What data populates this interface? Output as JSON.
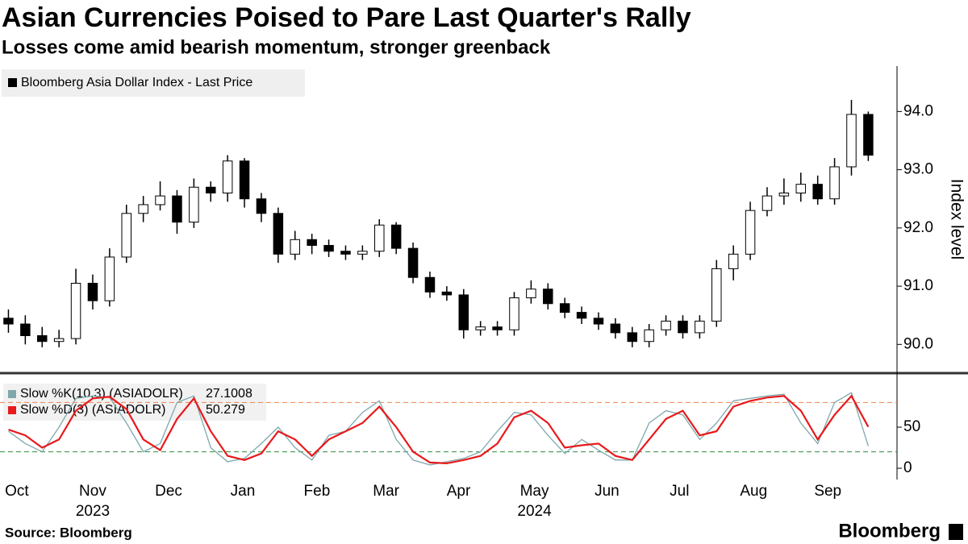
{
  "chart_data": [
    {
      "type": "candlestick",
      "title": "Asian Currencies Poised to Pare Last Quarter's Rally",
      "subtitle": "Losses come amid bearish momentum, stronger greenback",
      "name": "Bloomberg Asia Dollar Index - Last Price",
      "y_label": "Index level",
      "up_color": "#ffffff",
      "down_color": "#000000",
      "xlim": [
        -0.5,
        52.13
      ],
      "ylim": [
        89.52,
        94.78
      ],
      "yticks": [
        {
          "value": 90,
          "label": "90.0"
        },
        {
          "value": 91,
          "label": "91.0"
        },
        {
          "value": 92,
          "label": "92.0"
        },
        {
          "value": 93,
          "label": "93.0"
        },
        {
          "value": 94,
          "label": "94.0"
        }
      ],
      "open": [
        90.45,
        90.35,
        90.15,
        90.05,
        90.1,
        91.05,
        90.75,
        91.5,
        92.25,
        92.4,
        92.55,
        92.1,
        92.7,
        92.6,
        93.15,
        92.5,
        92.25,
        91.55,
        91.8,
        91.7,
        91.6,
        91.55,
        91.6,
        92.05,
        91.65,
        91.15,
        90.9,
        90.85,
        90.25,
        90.3,
        90.25,
        90.8,
        90.95,
        90.7,
        90.55,
        90.45,
        90.35,
        90.2,
        90.05,
        90.25,
        90.4,
        90.2,
        90.4,
        91.3,
        91.55,
        92.3,
        92.55,
        92.6,
        92.75,
        92.5,
        93.05,
        93.95
      ],
      "high": [
        90.6,
        90.5,
        90.3,
        90.25,
        91.3,
        91.2,
        91.65,
        92.4,
        92.55,
        92.8,
        92.65,
        92.85,
        92.8,
        93.25,
        93.2,
        92.6,
        92.35,
        91.95,
        91.9,
        91.8,
        91.7,
        91.7,
        92.15,
        92.1,
        91.75,
        91.25,
        91.0,
        90.95,
        90.4,
        90.4,
        90.9,
        91.1,
        91.05,
        90.8,
        90.65,
        90.55,
        90.45,
        90.3,
        90.35,
        90.5,
        90.5,
        90.5,
        91.45,
        91.7,
        92.45,
        92.7,
        92.85,
        92.95,
        92.9,
        93.2,
        94.2,
        94.0
      ],
      "low": [
        90.2,
        90.0,
        89.95,
        89.95,
        90.0,
        90.6,
        90.65,
        91.4,
        92.1,
        92.3,
        91.9,
        92.0,
        92.45,
        92.45,
        92.35,
        92.1,
        91.4,
        91.45,
        91.55,
        91.5,
        91.45,
        91.45,
        91.5,
        91.55,
        91.05,
        90.8,
        90.75,
        90.1,
        90.15,
        90.15,
        90.15,
        90.7,
        90.6,
        90.45,
        90.35,
        90.25,
        90.1,
        89.95,
        89.95,
        90.15,
        90.1,
        90.1,
        90.3,
        91.1,
        91.45,
        92.2,
        92.4,
        92.45,
        92.4,
        92.4,
        92.9,
        93.15
      ],
      "close": [
        90.35,
        90.15,
        90.05,
        90.1,
        91.05,
        90.75,
        91.5,
        92.25,
        92.4,
        92.55,
        92.1,
        92.7,
        92.6,
        93.15,
        92.5,
        92.25,
        91.55,
        91.8,
        91.7,
        91.6,
        91.55,
        91.6,
        92.05,
        91.65,
        91.15,
        90.9,
        90.85,
        90.25,
        90.3,
        90.25,
        90.8,
        90.95,
        90.7,
        90.55,
        90.45,
        90.35,
        90.2,
        90.05,
        90.25,
        90.4,
        90.2,
        90.4,
        91.3,
        91.55,
        92.3,
        92.55,
        92.6,
        92.75,
        92.5,
        93.05,
        93.95,
        93.25
      ]
    },
    {
      "type": "line",
      "xlim": [
        -0.5,
        52.13
      ],
      "ylim": [
        -13.7,
        110.8
      ],
      "yticks": [
        0,
        50
      ],
      "reference_lines": [
        {
          "value": 80,
          "color": "#f0834a"
        },
        {
          "value": 20,
          "color": "#2e8b3d"
        }
      ],
      "xticks": [
        {
          "value": 0.5,
          "label": "Oct"
        },
        {
          "value": 5,
          "label": "Nov"
        },
        {
          "value": 9.5,
          "label": "Dec"
        },
        {
          "value": 13.9,
          "label": "Jan"
        },
        {
          "value": 18.3,
          "label": "Feb"
        },
        {
          "value": 22.4,
          "label": "Mar"
        },
        {
          "value": 26.7,
          "label": "Apr"
        },
        {
          "value": 31.2,
          "label": "May"
        },
        {
          "value": 35.5,
          "label": "Jun"
        },
        {
          "value": 39.8,
          "label": "Jul"
        },
        {
          "value": 44.2,
          "label": "Aug"
        },
        {
          "value": 48.6,
          "label": "Sep"
        }
      ],
      "year_labels": [
        {
          "value": 5,
          "label": "2023"
        },
        {
          "value": 31.2,
          "label": "2024"
        }
      ],
      "series": [
        {
          "name": "Slow %K(10,3) (ASIADOLR)",
          "color": "#7fa8ad",
          "values": [
            45,
            30,
            20,
            50,
            85,
            88,
            86,
            55,
            20,
            30,
            80,
            88,
            25,
            8,
            12,
            30,
            50,
            25,
            10,
            40,
            45,
            68,
            82,
            35,
            10,
            4,
            8,
            12,
            20,
            45,
            68,
            65,
            40,
            18,
            35,
            22,
            10,
            10,
            55,
            70,
            65,
            35,
            55,
            82,
            85,
            88,
            90,
            55,
            30,
            80,
            92,
            27.1008
          ]
        },
        {
          "name": "Slow %D(3) (ASIADOLR)",
          "color": "#e8191b",
          "values": [
            47,
            40,
            25,
            35,
            70,
            85,
            87,
            72,
            35,
            22,
            60,
            85,
            45,
            15,
            10,
            18,
            45,
            35,
            15,
            35,
            45,
            55,
            75,
            50,
            20,
            7,
            6,
            10,
            15,
            30,
            62,
            70,
            55,
            25,
            28,
            30,
            15,
            10,
            35,
            60,
            70,
            40,
            45,
            75,
            82,
            86,
            88,
            70,
            35,
            65,
            88,
            50.279
          ]
        }
      ]
    }
  ],
  "source": "Source: Bloomberg",
  "brand": "Bloomberg"
}
